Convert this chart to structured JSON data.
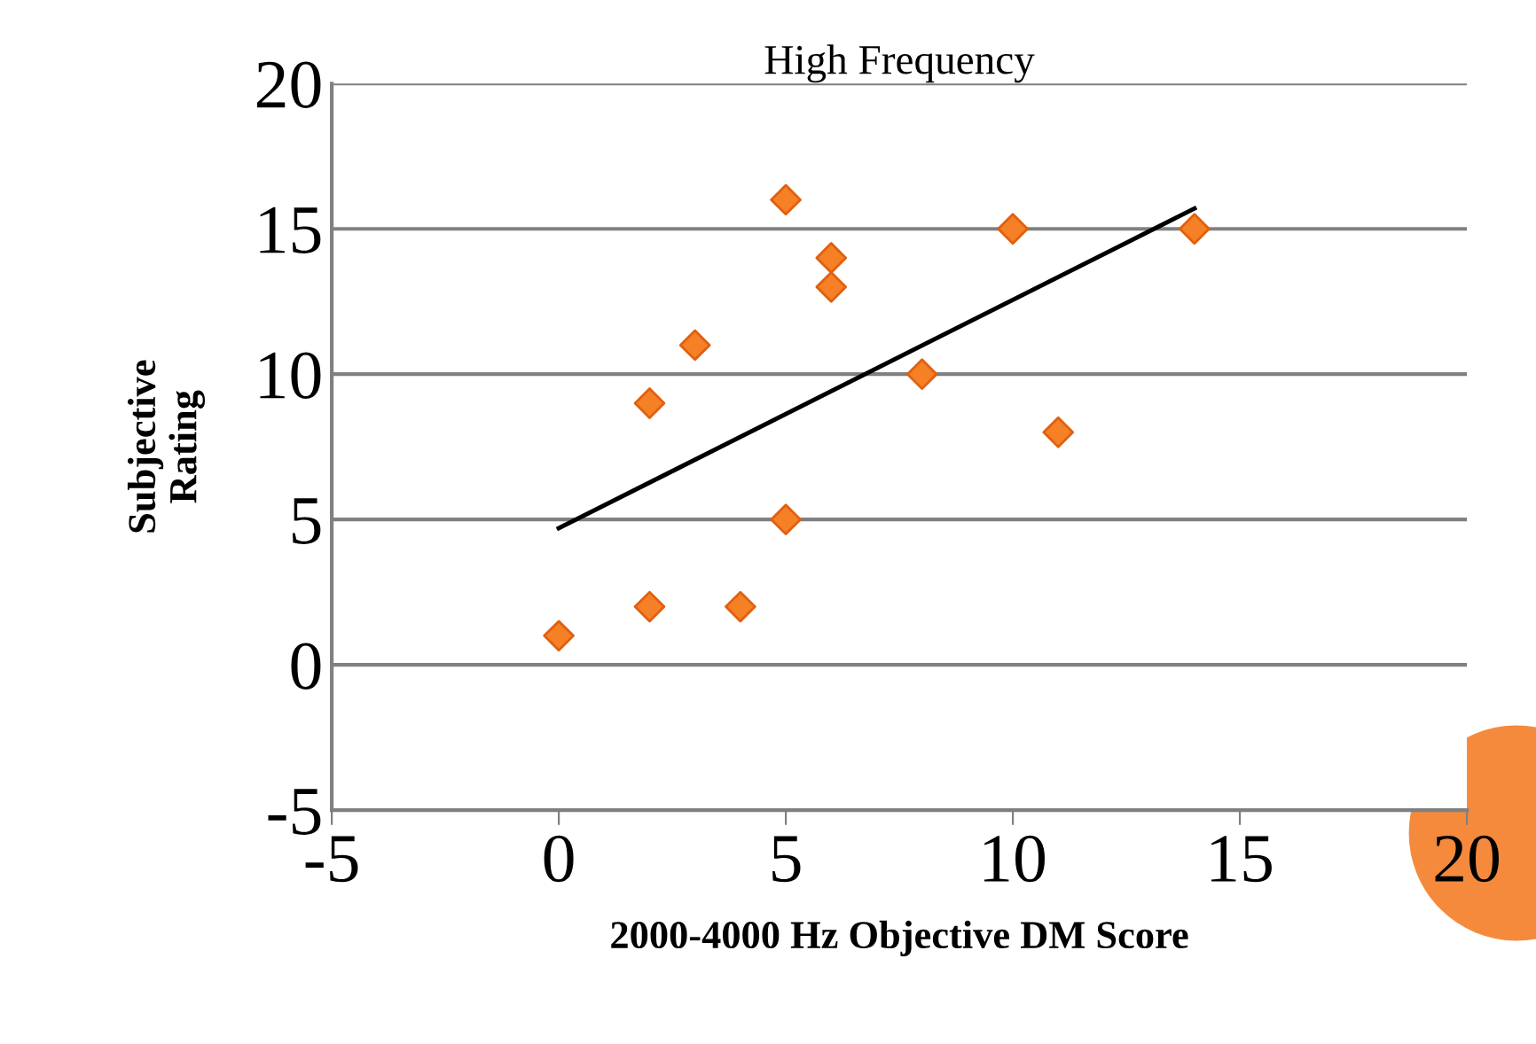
{
  "chart_data": {
    "type": "scatter",
    "title": "High Frequency",
    "xlabel": "2000-4000 Hz Objective DM Score",
    "ylabel": "Subjective\nRating",
    "series": [
      {
        "color": "#f58025",
        "marker": "diamond",
        "x": [
          0,
          2,
          2,
          3,
          4,
          5,
          5,
          6,
          6,
          8,
          10,
          11,
          14
        ],
        "values": [
          1,
          2,
          9,
          11,
          2,
          16,
          5,
          14,
          13,
          10,
          15,
          8,
          15
        ]
      },
      {
        "type": "line",
        "color": "#000000",
        "marker": "none",
        "line_style": "solid",
        "x": [
          0,
          14
        ],
        "values": [
          4.7,
          15.7
        ]
      }
    ],
    "xlim": [
      -5,
      20
    ],
    "xticks": [
      -5,
      0,
      5,
      10,
      15,
      20
    ],
    "ylim": [
      -5,
      20
    ],
    "yticks": [
      -5,
      0,
      5,
      10,
      15,
      20
    ],
    "grid": "y",
    "legend": false
  }
}
